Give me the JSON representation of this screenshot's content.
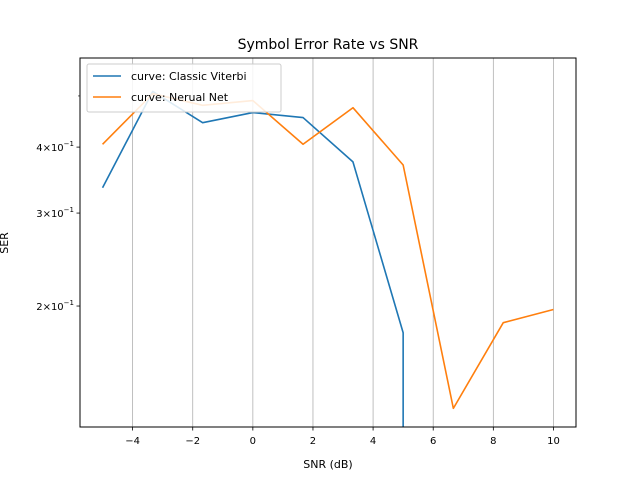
{
  "chart_data": {
    "type": "line",
    "title": "Symbol Error Rate vs SNR",
    "xlabel": "SNR (dB)",
    "ylabel": "SER",
    "yscale": "log",
    "xlim": [
      -5.75,
      10.75
    ],
    "ylim": [
      0.118,
      0.59
    ],
    "grid": "vertical",
    "legend_position": "top-left",
    "x_ticks": [
      {
        "value": -4,
        "label": "−4"
      },
      {
        "value": -2,
        "label": "−2"
      },
      {
        "value": 0,
        "label": "0"
      },
      {
        "value": 2,
        "label": "2"
      },
      {
        "value": 4,
        "label": "4"
      },
      {
        "value": 6,
        "label": "6"
      },
      {
        "value": 8,
        "label": "8"
      },
      {
        "value": 10,
        "label": "10"
      }
    ],
    "y_ticks": [
      {
        "value": 0.4,
        "mantissa": "4",
        "label": "4 × 10⁻¹"
      },
      {
        "value": 0.3,
        "mantissa": "3",
        "label": "3 × 10⁻¹"
      },
      {
        "value": 0.2,
        "mantissa": "2",
        "label": "2 × 10⁻¹"
      }
    ],
    "y_minor_ticks": [
      0.5
    ],
    "series": [
      {
        "name": "curve: Classic Viterbi",
        "color": "#1f77b4",
        "x": [
          -5,
          -3.33,
          -1.67,
          0,
          1.67,
          3.33,
          5,
          5
        ],
        "y": [
          0.335,
          0.51,
          0.445,
          0.465,
          0.455,
          0.375,
          0.178,
          0.118
        ]
      },
      {
        "name": "curve: Nerual Net",
        "color": "#ff7f0e",
        "x": [
          -5,
          -3.33,
          -1.67,
          0,
          1.67,
          3.33,
          5,
          6.67,
          8.33,
          10
        ],
        "y": [
          0.405,
          0.505,
          0.48,
          0.49,
          0.405,
          0.475,
          0.37,
          0.128,
          0.186,
          0.197
        ]
      }
    ]
  }
}
